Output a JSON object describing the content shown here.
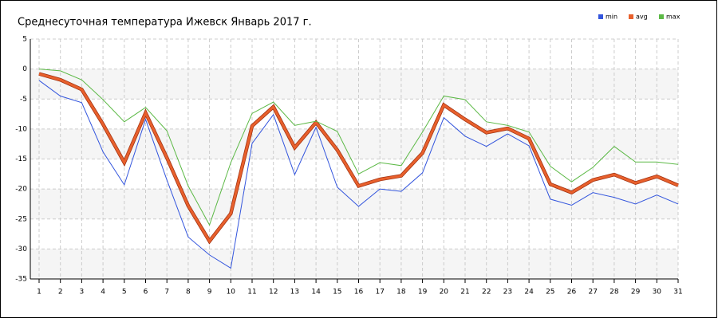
{
  "chart_data": {
    "type": "line",
    "title": "Среднесуточная температура Ижевск  Январь 2017 г.",
    "x": [
      1,
      2,
      3,
      4,
      5,
      6,
      7,
      8,
      9,
      10,
      11,
      12,
      13,
      14,
      15,
      16,
      17,
      18,
      19,
      20,
      21,
      22,
      23,
      24,
      25,
      26,
      27,
      28,
      29,
      30,
      31
    ],
    "xlim": [
      1,
      31
    ],
    "xticks": [
      1,
      2,
      3,
      4,
      5,
      6,
      7,
      8,
      9,
      10,
      11,
      12,
      13,
      14,
      15,
      16,
      17,
      18,
      19,
      20,
      21,
      22,
      23,
      24,
      25,
      26,
      27,
      28,
      29,
      30,
      31
    ],
    "ylim": [
      -35,
      5
    ],
    "yticks": [
      5,
      0,
      -5,
      -10,
      -15,
      -20,
      -25,
      -30,
      -35
    ],
    "grid": true,
    "legend": "top-right",
    "series": [
      {
        "name": "min",
        "color": "#3355dd",
        "values": [
          -1.9,
          -4.5,
          -5.6,
          -13.8,
          -19.3,
          -8.4,
          -18.5,
          -28,
          -31,
          -33.2,
          -12.4,
          -7.6,
          -17.6,
          -9.7,
          -19.7,
          -22.9,
          -20,
          -20.4,
          -17.3,
          -8.1,
          -11.2,
          -12.9,
          -10.8,
          -12.8,
          -21.7,
          -22.7,
          -20.6,
          -21.4,
          -22.5,
          -21,
          -22.5
        ]
      },
      {
        "name": "avg",
        "color": "#e8602c",
        "values": [
          -0.8,
          -1.8,
          -3.4,
          -9.2,
          -15.6,
          -7.3,
          -14.8,
          -22.8,
          -28.7,
          -24.1,
          -9.5,
          -6.3,
          -13.1,
          -8.9,
          -13.5,
          -19.5,
          -18.4,
          -17.8,
          -14,
          -6,
          -8.4,
          -10.6,
          -9.9,
          -11.6,
          -19.2,
          -20.6,
          -18.5,
          -17.6,
          -19,
          -17.9,
          -19.4
        ]
      },
      {
        "name": "max",
        "color": "#5cb946",
        "values": [
          0,
          -0.3,
          -1.8,
          -5.1,
          -8.8,
          -6.4,
          -10.3,
          -19.5,
          -26,
          -15.6,
          -7.4,
          -5.5,
          -9.4,
          -8.7,
          -10.4,
          -17.5,
          -15.6,
          -16.1,
          -10.5,
          -4.5,
          -5.1,
          -8.8,
          -9.4,
          -10.5,
          -16.2,
          -18.8,
          -16.4,
          -12.9,
          -15.5,
          -15.5,
          -15.9
        ]
      }
    ]
  }
}
